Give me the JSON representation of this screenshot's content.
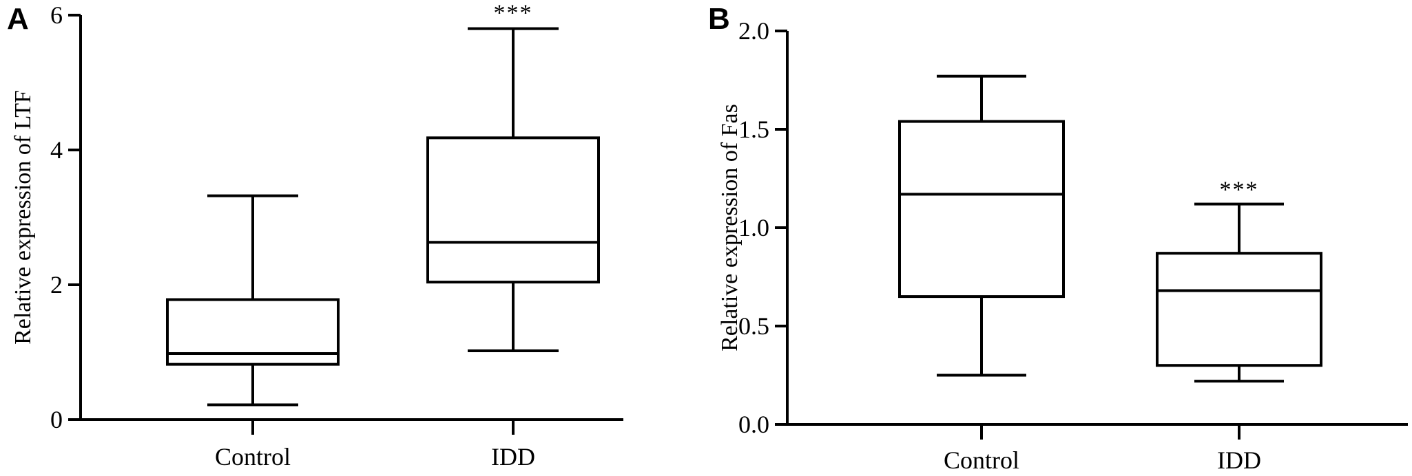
{
  "chart_data": [
    {
      "type": "box",
      "panel_label": "A",
      "ylabel": "Relative expression of LTF",
      "ylim": [
        0,
        6
      ],
      "yticks": [
        "0",
        "2",
        "4",
        "6"
      ],
      "categories": [
        "Control",
        "IDD"
      ],
      "boxes": [
        {
          "category": "Control",
          "min": 0.22,
          "q1": 0.82,
          "median": 0.98,
          "q3": 1.78,
          "max": 3.32,
          "significance": ""
        },
        {
          "category": "IDD",
          "min": 1.02,
          "q1": 2.04,
          "median": 2.63,
          "q3": 4.18,
          "max": 5.8,
          "significance": "***"
        }
      ],
      "grid": false
    },
    {
      "type": "box",
      "panel_label": "B",
      "ylabel": "Relative expression of Fas",
      "ylim": [
        0,
        2.0
      ],
      "yticks": [
        "0.0",
        "0.5",
        "1.0",
        "1.5",
        "2.0"
      ],
      "categories": [
        "Control",
        "IDD"
      ],
      "boxes": [
        {
          "category": "Control",
          "min": 0.25,
          "q1": 0.65,
          "median": 1.17,
          "q3": 1.54,
          "max": 1.77,
          "significance": ""
        },
        {
          "category": "IDD",
          "min": 0.22,
          "q1": 0.3,
          "median": 0.68,
          "q3": 0.87,
          "max": 1.12,
          "significance": "***"
        }
      ],
      "grid": false
    }
  ]
}
